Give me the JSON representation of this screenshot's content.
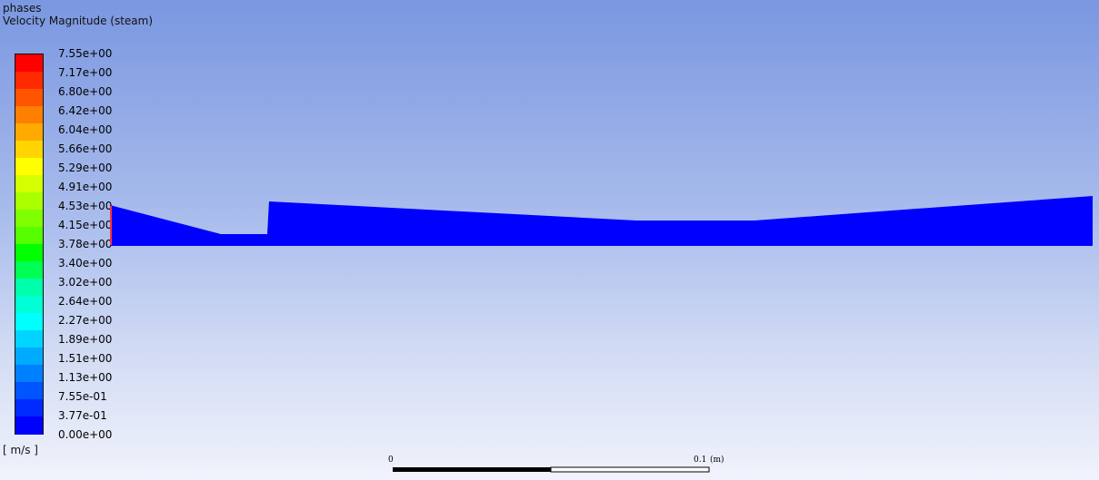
{
  "header": {
    "line1": "phases",
    "line2": "Velocity Magnitude (steam)"
  },
  "legend": {
    "units": "[ m/s ]",
    "labels": [
      "7.55e+00",
      "7.17e+00",
      "6.80e+00",
      "6.42e+00",
      "6.04e+00",
      "5.66e+00",
      "5.29e+00",
      "4.91e+00",
      "4.53e+00",
      "4.15e+00",
      "3.78e+00",
      "3.40e+00",
      "3.02e+00",
      "2.64e+00",
      "2.27e+00",
      "1.89e+00",
      "1.51e+00",
      "1.13e+00",
      "7.55e-01",
      "3.77e-01",
      "0.00e+00"
    ],
    "colors": [
      "#ff0000",
      "#ff2a00",
      "#ff5500",
      "#ff7f00",
      "#ffaa00",
      "#ffd400",
      "#ffff00",
      "#d4ff00",
      "#aaff00",
      "#7fff00",
      "#55ff00",
      "#00ff00",
      "#00ff55",
      "#00ffaa",
      "#00ffd4",
      "#00ffff",
      "#00d4ff",
      "#00aaff",
      "#007fff",
      "#0055ff",
      "#002aff",
      "#0000ff"
    ]
  },
  "domain": {
    "fill_color": "#0000ff",
    "edge_color": "#ff3333"
  },
  "scale_bar": {
    "start_label": "0",
    "end_label": "0.1",
    "unit_label": "(m)"
  }
}
